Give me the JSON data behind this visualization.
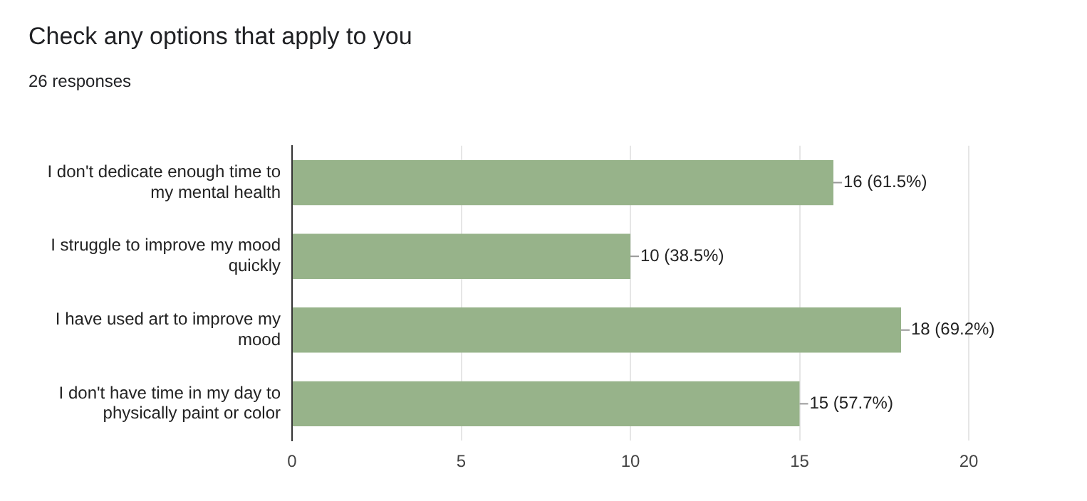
{
  "chart_data": {
    "type": "bar",
    "orientation": "horizontal",
    "title": "Check any options that apply to you",
    "subtitle": "26 responses",
    "categories": [
      "I don't dedicate enough time to my mental health",
      "I struggle to improve my mood quickly",
      "I have used art to improve my mood",
      "I don't have time in my day to physically paint or color"
    ],
    "values": [
      16,
      10,
      18,
      15
    ],
    "color": "#97b38a",
    "value_labels": [
      "16 (61.5%)",
      "10 (38.5%)",
      "18 (69.2%)",
      "15 (57.7%)"
    ],
    "xlim": [
      0,
      20
    ],
    "xticks": [
      0,
      5,
      10,
      15,
      20
    ],
    "grid": "x",
    "legend": false
  }
}
